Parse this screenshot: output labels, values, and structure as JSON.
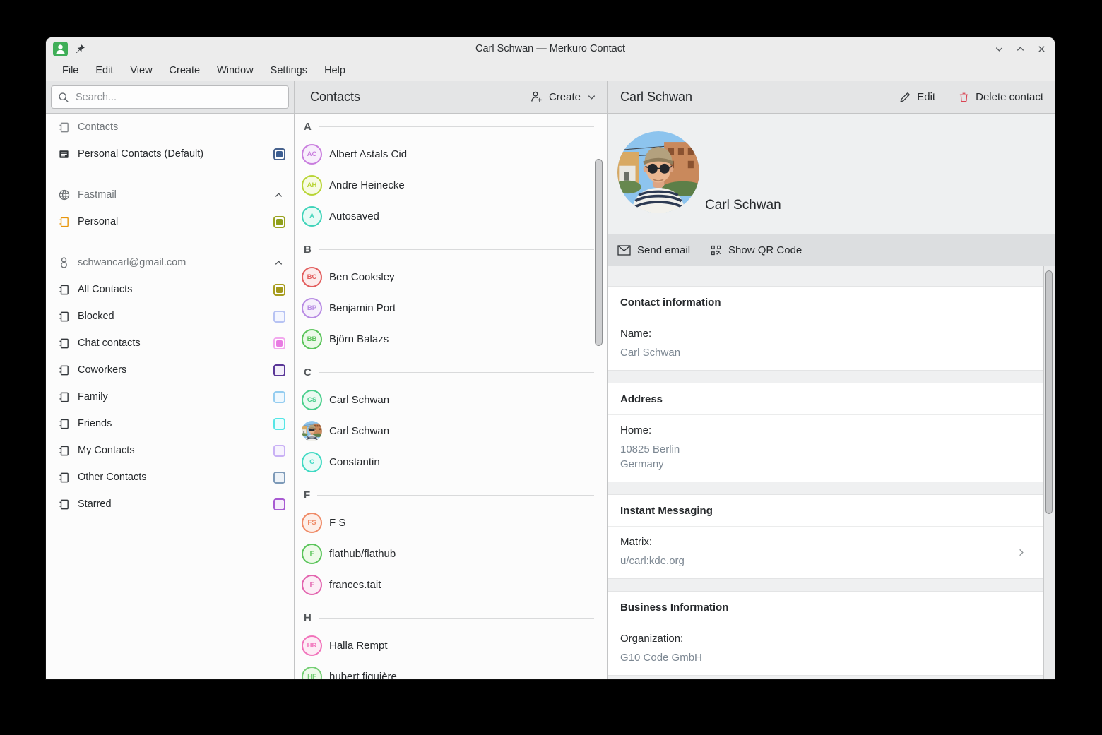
{
  "window": {
    "title": "Carl Schwan — Merkuro Contact",
    "controls": [
      "minimize",
      "maximize",
      "close"
    ]
  },
  "menu": {
    "items": [
      "File",
      "Edit",
      "View",
      "Create",
      "Window",
      "Settings",
      "Help"
    ]
  },
  "sidebar": {
    "search_placeholder": "Search...",
    "items": [
      {
        "id": "contacts",
        "label": "Contacts",
        "icon": "address-book",
        "style": "muted"
      },
      {
        "id": "personal-contacts-default",
        "label": "Personal Contacts (Default)",
        "icon": "view-list",
        "checkbox": {
          "checked": true,
          "border": "#48638e",
          "fill": "#3c5e92",
          "tint": "#ffffff"
        }
      },
      {
        "id": "fastmail",
        "label": "Fastmail",
        "icon": "globe",
        "style": "group",
        "expanded": true
      },
      {
        "id": "personal",
        "label": "Personal",
        "icon": "address-book",
        "icon_color": "#e8960c",
        "checkbox": {
          "checked": true,
          "border": "#9aa321",
          "fill": "#8fa01c",
          "tint": "#ffffff"
        }
      },
      {
        "id": "gmail",
        "label": "schwancarl@gmail.com",
        "icon": "google",
        "style": "group",
        "expanded": true
      },
      {
        "id": "all-contacts",
        "label": "All Contacts",
        "icon": "address-book",
        "checkbox": {
          "checked": true,
          "border": "#a89d20",
          "fill": "#a4991b",
          "tint": "#ffffff"
        }
      },
      {
        "id": "blocked",
        "label": "Blocked",
        "icon": "address-book",
        "checkbox": {
          "checked": false,
          "border": "#b7c3f3",
          "tint": "#f4f6ff"
        }
      },
      {
        "id": "chat-contacts",
        "label": "Chat contacts",
        "icon": "address-book",
        "checkbox": {
          "checked": true,
          "border": "#f2a9ee",
          "fill": "#e87ce2",
          "tint": "#ffffff"
        }
      },
      {
        "id": "coworkers",
        "label": "Coworkers",
        "icon": "address-book",
        "checkbox": {
          "checked": false,
          "border": "#5a3797",
          "tint": "#f3effa"
        }
      },
      {
        "id": "family",
        "label": "Family",
        "icon": "address-book",
        "checkbox": {
          "checked": false,
          "border": "#95cdf0",
          "tint": "#eff8fe"
        }
      },
      {
        "id": "friends",
        "label": "Friends",
        "icon": "address-book",
        "checkbox": {
          "checked": false,
          "border": "#55e6e6",
          "tint": "#ecfefe"
        }
      },
      {
        "id": "my-contacts",
        "label": "My Contacts",
        "icon": "address-book",
        "checkbox": {
          "checked": false,
          "border": "#c9b1f5",
          "tint": "#f7f3fe"
        }
      },
      {
        "id": "other-contacts",
        "label": "Other Contacts",
        "icon": "address-book",
        "checkbox": {
          "checked": false,
          "border": "#7d9ab8",
          "tint": "#eef3f8"
        }
      },
      {
        "id": "starred",
        "label": "Starred",
        "icon": "address-book",
        "checkbox": {
          "checked": false,
          "border": "#a85ad2",
          "tint": "#f6eefb"
        }
      }
    ]
  },
  "contacts": {
    "title": "Contacts",
    "create_label": "Create",
    "groups": [
      {
        "letter": "A",
        "contacts": [
          {
            "name": "Albert Astals Cid",
            "initials": "AC",
            "color": "#c97ede",
            "tint": "#f8eefc"
          },
          {
            "name": "Andre Heinecke",
            "initials": "AH",
            "color": "#b8d435",
            "tint": "#f7fbe3"
          },
          {
            "name": "Autosaved",
            "initials": "A",
            "color": "#3ed3b9",
            "tint": "#e8fbf6"
          }
        ]
      },
      {
        "letter": "B",
        "contacts": [
          {
            "name": "Ben Cooksley",
            "initials": "BC",
            "color": "#e25d5d",
            "tint": "#fcecec"
          },
          {
            "name": "Benjamin Port",
            "initials": "BP",
            "color": "#b78ae3",
            "tint": "#f6f0fc"
          },
          {
            "name": "Björn Balazs",
            "initials": "BB",
            "color": "#5ac45a",
            "tint": "#ecf9e9"
          }
        ]
      },
      {
        "letter": "C",
        "contacts": [
          {
            "name": "Carl Schwan",
            "initials": "CS",
            "color": "#49cf8c",
            "tint": "#eafaf1"
          },
          {
            "name": "Carl Schwan",
            "initials": "CS",
            "photo": true
          },
          {
            "name": "Constantin",
            "initials": "C",
            "color": "#3fd9c3",
            "tint": "#e9fbf7"
          }
        ]
      },
      {
        "letter": "F",
        "contacts": [
          {
            "name": "F S",
            "initials": "FS",
            "color": "#ef8a66",
            "tint": "#fdefe9"
          },
          {
            "name": "flathub/flathub",
            "initials": "F",
            "color": "#5ac45a",
            "tint": "#eefae9"
          },
          {
            "name": "frances.tait",
            "initials": "F",
            "color": "#e263ae",
            "tint": "#fceef6"
          }
        ]
      },
      {
        "letter": "H",
        "contacts": [
          {
            "name": "Halla Rempt",
            "initials": "HR",
            "color": "#f173bb",
            "tint": "#fdecf5"
          },
          {
            "name": "hubert figuière",
            "initials": "HF",
            "color": "#74ce74",
            "tint": "#eefaea"
          }
        ]
      }
    ]
  },
  "details": {
    "title": "Carl Schwan",
    "edit_label": "Edit",
    "delete_label": "Delete contact",
    "profile_name": "Carl Schwan",
    "actions": [
      {
        "id": "send-email",
        "label": "Send email",
        "icon": "envelope"
      },
      {
        "id": "show-qr-code",
        "label": "Show QR Code",
        "icon": "qr"
      }
    ],
    "sections": [
      {
        "title": "Contact information",
        "rows": [
          {
            "label": "Name:",
            "values": [
              "Carl Schwan"
            ]
          }
        ]
      },
      {
        "title": "Address",
        "rows": [
          {
            "label": "Home:",
            "values": [
              "10825 Berlin",
              "Germany"
            ]
          }
        ]
      },
      {
        "title": "Instant Messaging",
        "rows": [
          {
            "label": "Matrix:",
            "values": [
              "u/carl:kde.org"
            ],
            "chevron": true
          }
        ]
      },
      {
        "title": "Business Information",
        "rows": [
          {
            "label": "Organization:",
            "values": [
              "G10 Code GmbH"
            ]
          }
        ]
      }
    ]
  },
  "colors": {
    "accent": "#3daee9",
    "delete_icon": "#da4453",
    "app_icon_green": "#3fae57"
  }
}
